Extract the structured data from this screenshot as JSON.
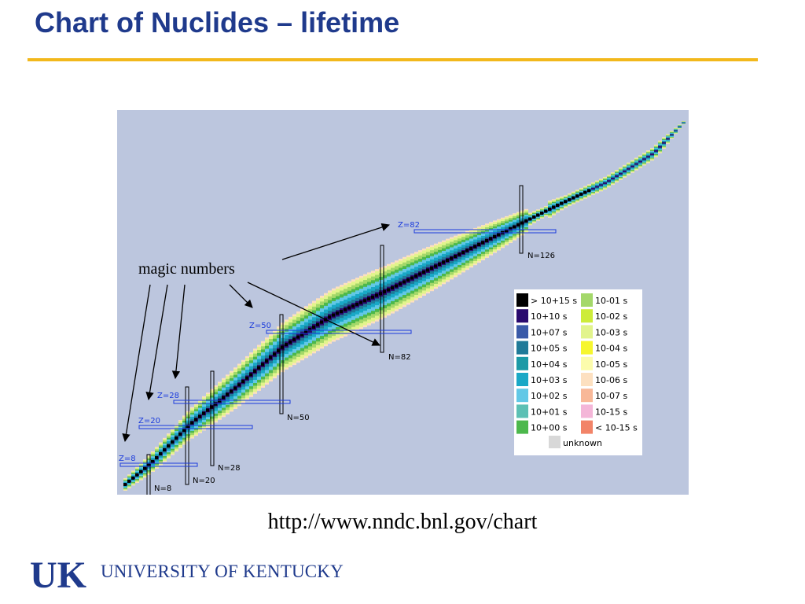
{
  "slide": {
    "title": "Chart of Nuclides – lifetime",
    "url": "http://www.nndc.bnl.gov/chart",
    "institution": "UNIVERSITY OF KENTUCKY",
    "logo_text": "UK",
    "colors": {
      "title": "#1f3a8c",
      "rule": "#f2b81c",
      "chart_bg": "#bcc6de"
    }
  },
  "chart": {
    "annotation": "magic numbers",
    "z_labels": [
      "Z=8",
      "Z=20",
      "Z=28",
      "Z=50",
      "Z=82"
    ],
    "n_labels": [
      "N=8",
      "N=20",
      "N=28",
      "N=50",
      "N=82",
      "N=126"
    ]
  },
  "legend": {
    "col1": [
      {
        "label": "> 10+15 s",
        "color": "#000000"
      },
      {
        "label": "10+10 s",
        "color": "#2a0a6e"
      },
      {
        "label": "10+07 s",
        "color": "#3a5aa8"
      },
      {
        "label": "10+05 s",
        "color": "#207a98"
      },
      {
        "label": "10+04 s",
        "color": "#1c9aa6"
      },
      {
        "label": "10+03 s",
        "color": "#19a8c6"
      },
      {
        "label": "10+02 s",
        "color": "#62c8e6"
      },
      {
        "label": "10+01 s",
        "color": "#5cc0b4"
      },
      {
        "label": "10+00 s",
        "color": "#4cb84c"
      }
    ],
    "col2": [
      {
        "label": "10-01 s",
        "color": "#a4d86a"
      },
      {
        "label": "10-02 s",
        "color": "#cdec3a"
      },
      {
        "label": "10-03 s",
        "color": "#e2f48c"
      },
      {
        "label": "10-04 s",
        "color": "#f6f62e"
      },
      {
        "label": "10-05 s",
        "color": "#fcfcac"
      },
      {
        "label": "10-06 s",
        "color": "#fde0c0"
      },
      {
        "label": "10-07 s",
        "color": "#f8b898"
      },
      {
        "label": "10-15 s",
        "color": "#f4b6d8"
      },
      {
        "label": "< 10-15 s",
        "color": "#f28468"
      }
    ],
    "unknown": {
      "label": "unknown",
      "color": "#d8d8d8"
    }
  }
}
